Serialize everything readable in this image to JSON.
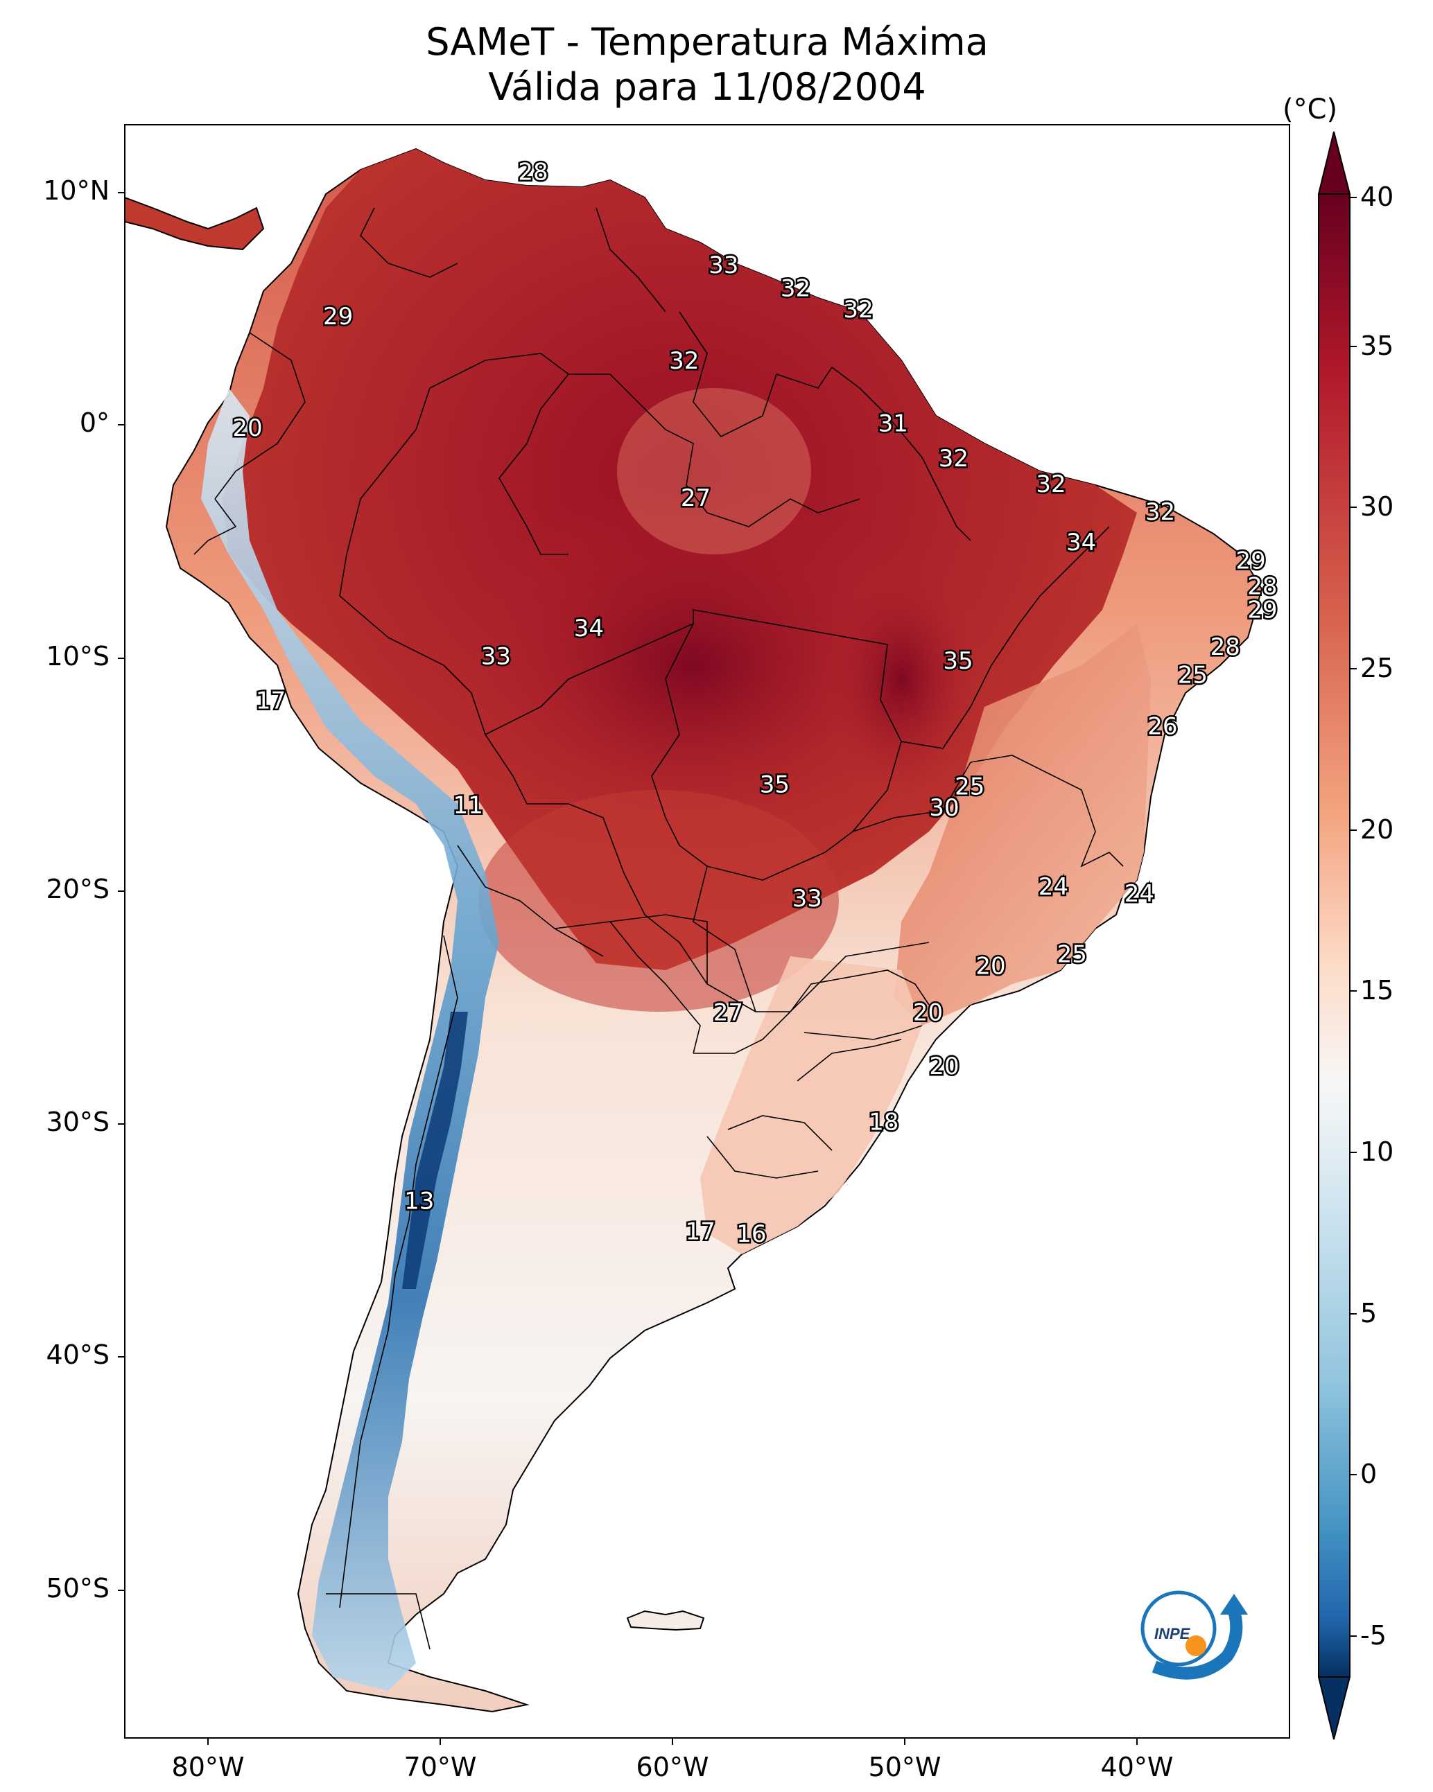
{
  "title": {
    "line1": "SAMeT - Temperatura Máxima",
    "line2": "Válida para 11/08/2004"
  },
  "axes": {
    "lat_labels": [
      "10°N",
      "0°",
      "10°S",
      "20°S",
      "30°S",
      "40°S",
      "50°S"
    ],
    "lon_labels": [
      "80°W",
      "70°W",
      "60°W",
      "50°W",
      "40°W"
    ]
  },
  "colorbar": {
    "unit": "(°C)",
    "ticks": [
      "40",
      "35",
      "30",
      "25",
      "20",
      "15",
      "10",
      "5",
      "0",
      "-5"
    ],
    "min": -7,
    "max": 40,
    "colors": {
      "hot": "#67001f",
      "warm": "#d6604d",
      "neutral": "#f7f7f7",
      "cool": "#4393c3",
      "cold": "#053061"
    }
  },
  "isotherm_labels": [
    {
      "value": "28",
      "lon": -66.0,
      "lat": 10.8
    },
    {
      "value": "29",
      "lon": -74.4,
      "lat": 4.6
    },
    {
      "value": "33",
      "lon": -57.8,
      "lat": 6.8
    },
    {
      "value": "32",
      "lon": -54.7,
      "lat": 5.8
    },
    {
      "value": "32",
      "lon": -52.0,
      "lat": 4.9
    },
    {
      "value": "32",
      "lon": -59.5,
      "lat": 2.7
    },
    {
      "value": "31",
      "lon": -50.5,
      "lat": 0.0
    },
    {
      "value": "20",
      "lon": -78.3,
      "lat": -0.2
    },
    {
      "value": "32",
      "lon": -47.9,
      "lat": -1.5
    },
    {
      "value": "32",
      "lon": -43.7,
      "lat": -2.6
    },
    {
      "value": "27",
      "lon": -59.0,
      "lat": -3.2
    },
    {
      "value": "32",
      "lon": -39.0,
      "lat": -3.8
    },
    {
      "value": "34",
      "lon": -42.4,
      "lat": -5.1
    },
    {
      "value": "29",
      "lon": -35.1,
      "lat": -5.9
    },
    {
      "value": "28",
      "lon": -34.6,
      "lat": -7.0
    },
    {
      "value": "29",
      "lon": -34.6,
      "lat": -8.0
    },
    {
      "value": "34",
      "lon": -63.6,
      "lat": -8.8
    },
    {
      "value": "33",
      "lon": -67.6,
      "lat": -10.0
    },
    {
      "value": "35",
      "lon": -47.7,
      "lat": -10.2
    },
    {
      "value": "28",
      "lon": -36.2,
      "lat": -9.6
    },
    {
      "value": "25",
      "lon": -37.6,
      "lat": -10.8
    },
    {
      "value": "17",
      "lon": -77.3,
      "lat": -11.9
    },
    {
      "value": "26",
      "lon": -38.9,
      "lat": -13.0
    },
    {
      "value": "35",
      "lon": -55.6,
      "lat": -15.5
    },
    {
      "value": "25",
      "lon": -47.2,
      "lat": -15.6
    },
    {
      "value": "30",
      "lon": -48.3,
      "lat": -16.5
    },
    {
      "value": "11",
      "lon": -68.8,
      "lat": -16.4
    },
    {
      "value": "24",
      "lon": -43.6,
      "lat": -19.9
    },
    {
      "value": "24",
      "lon": -39.9,
      "lat": -20.2
    },
    {
      "value": "33",
      "lon": -54.2,
      "lat": -20.4
    },
    {
      "value": "25",
      "lon": -42.8,
      "lat": -22.8
    },
    {
      "value": "20",
      "lon": -46.3,
      "lat": -23.3
    },
    {
      "value": "27",
      "lon": -57.6,
      "lat": -25.3
    },
    {
      "value": "20",
      "lon": -49.0,
      "lat": -25.3
    },
    {
      "value": "20",
      "lon": -48.3,
      "lat": -27.6
    },
    {
      "value": "18",
      "lon": -50.9,
      "lat": -30.0
    },
    {
      "value": "13",
      "lon": -70.9,
      "lat": -33.4
    },
    {
      "value": "17",
      "lon": -58.8,
      "lat": -34.7
    },
    {
      "value": "16",
      "lon": -56.6,
      "lat": -34.8
    }
  ],
  "logo": {
    "text": "INPE"
  }
}
